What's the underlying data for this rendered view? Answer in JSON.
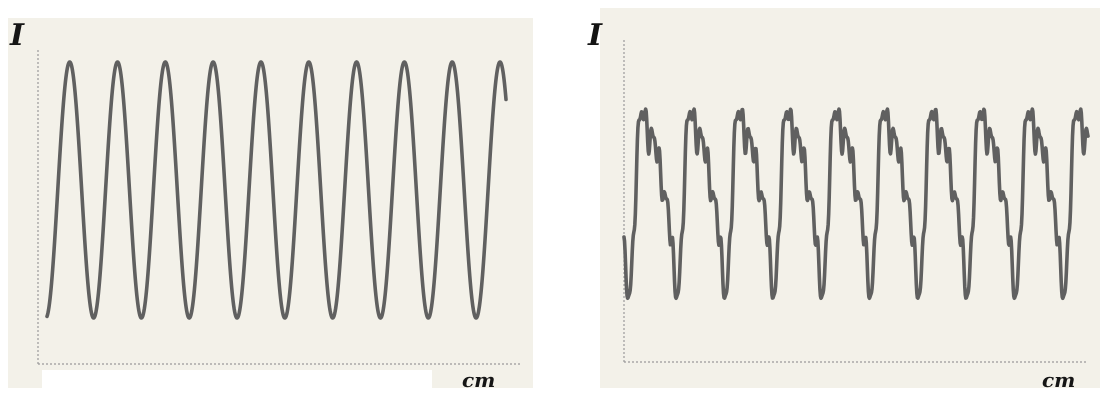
{
  "chart_data": [
    {
      "type": "line",
      "ylabel": "I",
      "xlabel": "cm",
      "waveform": "sinusoidal",
      "cycles": 9.6,
      "series": [
        {
          "values_range": [
            -1,
            1
          ]
        }
      ],
      "grid": false,
      "color": "#606060"
    },
    {
      "type": "line",
      "ylabel": "I",
      "xlabel": "cm",
      "waveform": "distorted-periodic-with-harmonics",
      "cycles": 9.6,
      "series": [
        {
          "values_range": [
            -1,
            1
          ]
        }
      ],
      "grid": false,
      "color": "#606060"
    }
  ]
}
